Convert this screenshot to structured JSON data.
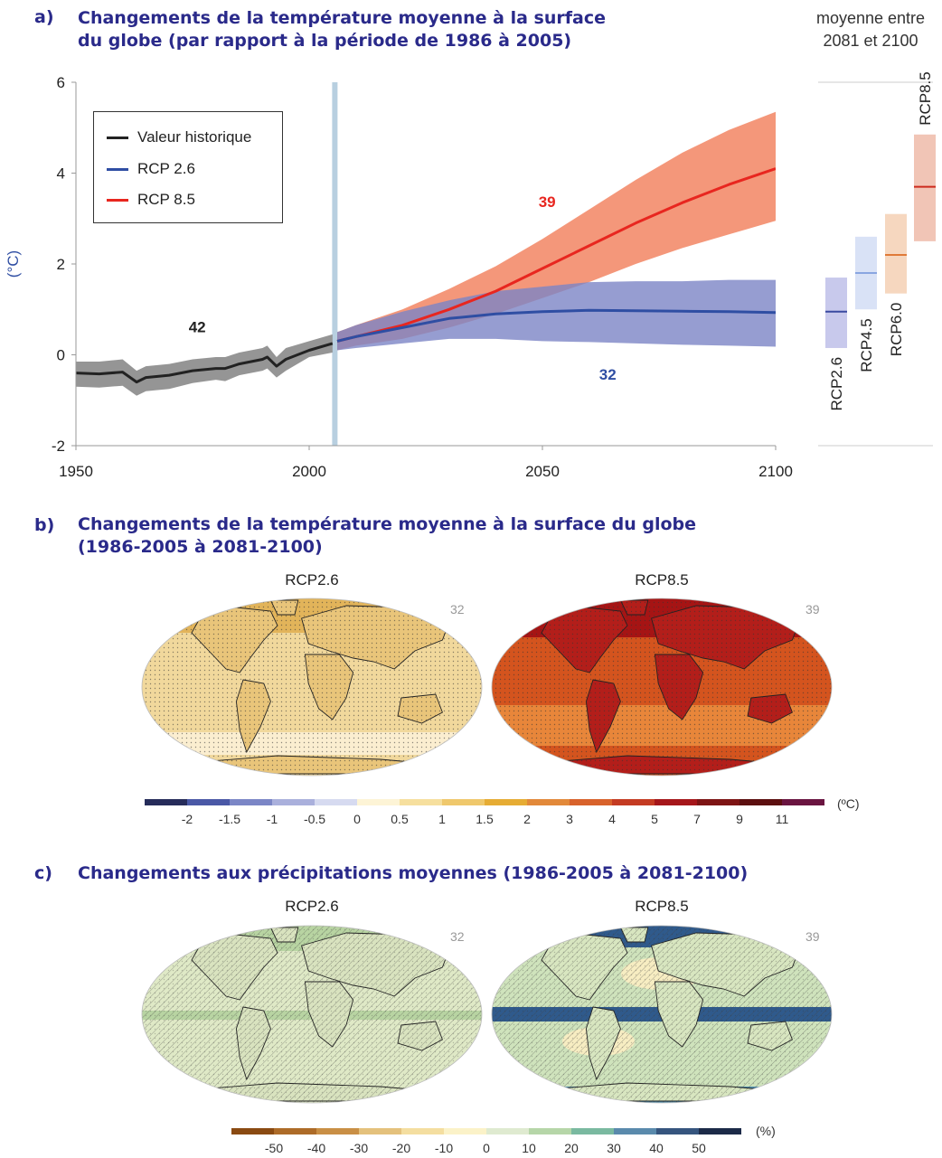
{
  "panel_a": {
    "label": "a)",
    "title_line1": "Changements de la température moyenne à la surface",
    "title_line2": "du globe (par rapport à la période de 1986 à 2005)",
    "side_note_line1": "moyenne entre",
    "side_note_line2": "2081 et 2100",
    "ylabel": "(°C)",
    "colors": {
      "historical": "#222222",
      "rcp26": "#2f4ea3",
      "rcp85": "#e8261f",
      "hist_band": "#8a8a8a",
      "rcp26_band": "#7c84c6",
      "rcp85_band": "#f38c6c",
      "divider": "#b8cfe0"
    },
    "chart_data": {
      "type": "line",
      "xlim": [
        1950,
        2100
      ],
      "ylim": [
        -2,
        6
      ],
      "xticks": [
        "1950",
        "2000",
        "2050",
        "2100"
      ],
      "yticks": [
        "6",
        "4",
        "2",
        "0",
        "-2"
      ],
      "legend_position": "top-left",
      "series": [
        {
          "name": "Valeur historique",
          "count_label": "42",
          "x": [
            1950,
            1955,
            1960,
            1963,
            1965,
            1970,
            1975,
            1980,
            1982,
            1985,
            1990,
            1991,
            1993,
            1995,
            2000,
            2005
          ],
          "y": [
            -0.4,
            -0.42,
            -0.38,
            -0.6,
            -0.5,
            -0.45,
            -0.35,
            -0.3,
            -0.3,
            -0.2,
            -0.1,
            -0.05,
            -0.25,
            -0.1,
            0.1,
            0.25
          ],
          "low": [
            -0.7,
            -0.72,
            -0.68,
            -0.9,
            -0.8,
            -0.75,
            -0.62,
            -0.55,
            -0.58,
            -0.45,
            -0.35,
            -0.3,
            -0.5,
            -0.35,
            -0.05,
            0.05
          ],
          "high": [
            -0.15,
            -0.15,
            -0.1,
            -0.35,
            -0.25,
            -0.2,
            -0.1,
            -0.05,
            -0.05,
            0.05,
            0.15,
            0.2,
            -0.05,
            0.15,
            0.3,
            0.45
          ]
        },
        {
          "name": "RCP 2.6",
          "count_label": "32",
          "x": [
            2006,
            2010,
            2020,
            2030,
            2040,
            2050,
            2060,
            2070,
            2080,
            2090,
            2100
          ],
          "y": [
            0.3,
            0.4,
            0.6,
            0.8,
            0.9,
            0.95,
            0.98,
            0.97,
            0.96,
            0.95,
            0.93
          ],
          "low": [
            0.1,
            0.15,
            0.25,
            0.35,
            0.35,
            0.3,
            0.28,
            0.25,
            0.22,
            0.2,
            0.18
          ],
          "high": [
            0.5,
            0.65,
            0.95,
            1.2,
            1.4,
            1.5,
            1.6,
            1.62,
            1.62,
            1.65,
            1.65
          ]
        },
        {
          "name": "RCP 8.5",
          "count_label": "39",
          "x": [
            2006,
            2010,
            2020,
            2030,
            2040,
            2050,
            2060,
            2070,
            2080,
            2090,
            2100
          ],
          "y": [
            0.3,
            0.4,
            0.65,
            1.0,
            1.4,
            1.9,
            2.4,
            2.9,
            3.35,
            3.75,
            4.1
          ],
          "low": [
            0.1,
            0.2,
            0.35,
            0.6,
            0.9,
            1.25,
            1.6,
            2.0,
            2.35,
            2.65,
            2.95
          ],
          "high": [
            0.5,
            0.65,
            1.0,
            1.45,
            1.95,
            2.55,
            3.2,
            3.85,
            4.45,
            4.95,
            5.35
          ]
        }
      ]
    },
    "side_bars": [
      {
        "name": "RCP2.6",
        "low": 0.15,
        "high": 1.7,
        "mean": 0.95,
        "fill": "#c8c9ec",
        "line": "#3a4aa0"
      },
      {
        "name": "RCP4.5",
        "low": 1.0,
        "high": 2.6,
        "mean": 1.8,
        "fill": "#d9e2f6",
        "line": "#89a6e0"
      },
      {
        "name": "RCP6.0",
        "low": 1.35,
        "high": 3.1,
        "mean": 2.2,
        "fill": "#f6d7bf",
        "line": "#e07a38"
      },
      {
        "name": "RCP8.5",
        "low": 2.5,
        "high": 4.85,
        "mean": 3.7,
        "fill": "#f1c5b6",
        "line": "#cc2a1d"
      }
    ]
  },
  "panel_b": {
    "label": "b)",
    "title_line1": "Changements de la température moyenne à la surface du globe",
    "title_line2": "(1986-2005 à 2081-2100)",
    "maps": [
      {
        "title": "RCP2.6",
        "count": "32",
        "base": "#f1d89c",
        "accent": "#e2b45a",
        "light": "#fbeed0"
      },
      {
        "title": "RCP8.5",
        "count": "39",
        "base": "#d4541e",
        "accent": "#a61414",
        "light": "#e8863a"
      }
    ],
    "colorbar": {
      "unit": "(ºC)",
      "ticks": [
        "-2",
        "-1.5",
        "-1",
        "-0.5",
        "0",
        "0.5",
        "1",
        "1.5",
        "2",
        "3",
        "4",
        "5",
        "7",
        "9",
        "11"
      ],
      "colors": [
        "#262c5a",
        "#4a58a6",
        "#7b86c6",
        "#aab0dc",
        "#d6daf0",
        "#fdf4d6",
        "#f6df9e",
        "#efc86c",
        "#e6ac34",
        "#e2893a",
        "#d8622b",
        "#c43b22",
        "#a5161a",
        "#7d1414",
        "#5c0f10",
        "#6a1440"
      ]
    }
  },
  "panel_c": {
    "label": "c)",
    "title": "Changements aux précipitations moyennes (1986-2005 à 2081-2100)",
    "maps": [
      {
        "title": "RCP2.6",
        "count": "32",
        "base": "#dfe9c6",
        "accent": "#b8d4a2",
        "light": "#eef0d4"
      },
      {
        "title": "RCP8.5",
        "count": "39",
        "base": "#cfe3bc",
        "accent": "#2f5a8c",
        "light": "#f7edc2"
      }
    ],
    "colorbar": {
      "unit": "(%)",
      "ticks": [
        "-50",
        "-40",
        "-30",
        "-20",
        "-10",
        "0",
        "10",
        "20",
        "30",
        "40",
        "50"
      ],
      "colors": [
        "#8a4a12",
        "#ad6b28",
        "#c98f45",
        "#e4c17c",
        "#f4dea0",
        "#fbf2c8",
        "#dfead0",
        "#b6d6a8",
        "#7ab9a0",
        "#5a8aac",
        "#36557e",
        "#1c2a48"
      ]
    }
  }
}
